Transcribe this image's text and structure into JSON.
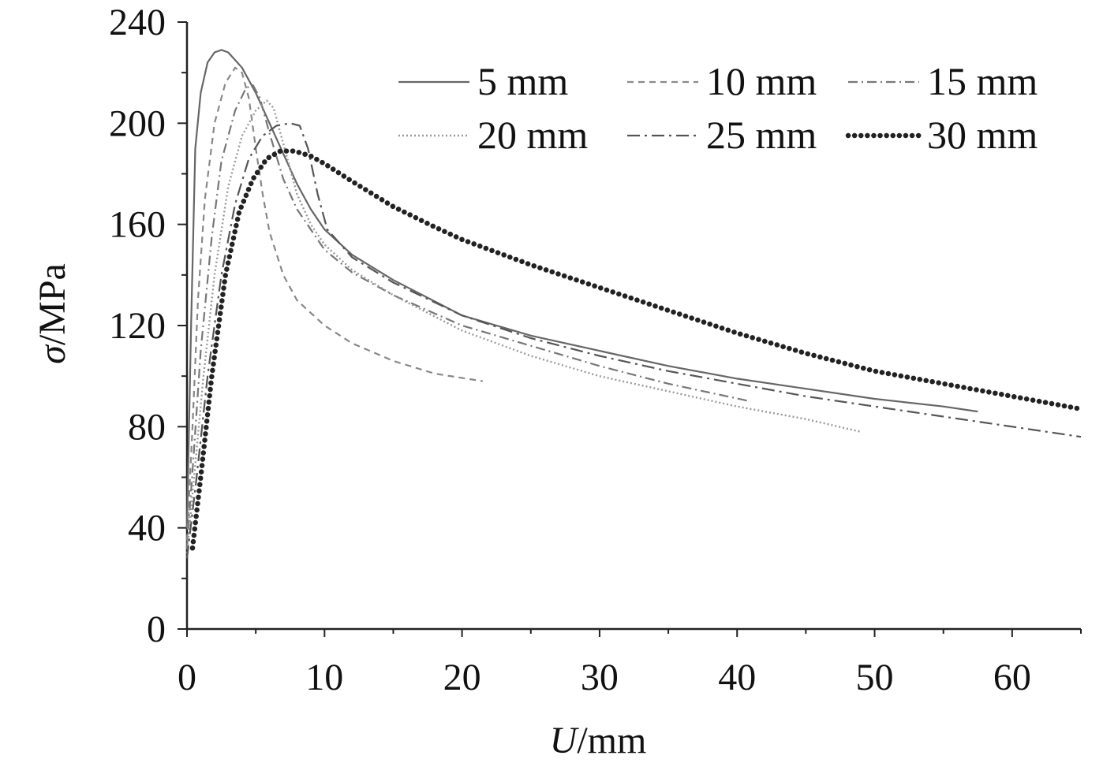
{
  "chart_data": {
    "type": "line",
    "xlabel_var": "U",
    "xlabel_unit": "/mm",
    "ylabel_var": "σ",
    "ylabel_unit": "/MPa",
    "xlim": [
      0,
      65
    ],
    "ylim": [
      0,
      240
    ],
    "xticks": [
      "0",
      "10",
      "20",
      "30",
      "40",
      "50",
      "60"
    ],
    "yticks": [
      "0",
      "40",
      "80",
      "120",
      "160",
      "200",
      "240"
    ],
    "grid": false,
    "legend_position": "top-right",
    "series": [
      {
        "name": "5 mm",
        "style": "solid",
        "color": "#666666",
        "points": [
          [
            0,
            40
          ],
          [
            0.3,
            120
          ],
          [
            0.6,
            190
          ],
          [
            1.0,
            212
          ],
          [
            1.5,
            224
          ],
          [
            2.0,
            228
          ],
          [
            2.5,
            229
          ],
          [
            3.0,
            228
          ],
          [
            4.0,
            222
          ],
          [
            5.0,
            212
          ],
          [
            6.0,
            200
          ],
          [
            7.0,
            188
          ],
          [
            8.0,
            176
          ],
          [
            9.0,
            166
          ],
          [
            10,
            158
          ],
          [
            12,
            148
          ],
          [
            15,
            138
          ],
          [
            20,
            124
          ],
          [
            25,
            116
          ],
          [
            30,
            110
          ],
          [
            35,
            104
          ],
          [
            40,
            99
          ],
          [
            45,
            95
          ],
          [
            50,
            91
          ],
          [
            55,
            88
          ],
          [
            57.5,
            86
          ]
        ]
      },
      {
        "name": "10 mm",
        "style": "dashed",
        "color": "#888888",
        "points": [
          [
            0,
            35
          ],
          [
            0.4,
            80
          ],
          [
            0.8,
            130
          ],
          [
            1.3,
            170
          ],
          [
            2.0,
            200
          ],
          [
            2.8,
            216
          ],
          [
            3.5,
            222
          ],
          [
            4.0,
            220
          ],
          [
            4.5,
            210
          ],
          [
            5.0,
            190
          ],
          [
            5.5,
            172
          ],
          [
            6.0,
            157
          ],
          [
            7.0,
            140
          ],
          [
            8.0,
            130
          ],
          [
            10,
            120
          ],
          [
            12,
            113
          ],
          [
            15,
            106
          ],
          [
            18,
            101
          ],
          [
            21.5,
            98
          ]
        ]
      },
      {
        "name": "15 mm",
        "style": "dashdot",
        "color": "#777777",
        "points": [
          [
            0,
            32
          ],
          [
            0.5,
            70
          ],
          [
            1.0,
            110
          ],
          [
            1.8,
            155
          ],
          [
            2.5,
            185
          ],
          [
            3.5,
            205
          ],
          [
            4.3,
            214
          ],
          [
            4.8,
            215
          ],
          [
            5.3,
            210
          ],
          [
            6.0,
            196
          ],
          [
            7.0,
            178
          ],
          [
            8.0,
            166
          ],
          [
            10,
            150
          ],
          [
            12,
            141
          ],
          [
            15,
            132
          ],
          [
            20,
            120
          ],
          [
            25,
            112
          ],
          [
            30,
            104
          ],
          [
            35,
            97
          ],
          [
            41,
            90
          ]
        ]
      },
      {
        "name": "20 mm",
        "style": "dotted",
        "color": "#999999",
        "points": [
          [
            0,
            30
          ],
          [
            0.6,
            65
          ],
          [
            1.2,
            100
          ],
          [
            2.0,
            140
          ],
          [
            3.0,
            175
          ],
          [
            4.0,
            195
          ],
          [
            5.0,
            205
          ],
          [
            5.8,
            209
          ],
          [
            6.3,
            206
          ],
          [
            7.0,
            192
          ],
          [
            8.0,
            172
          ],
          [
            9.0,
            160
          ],
          [
            10,
            152
          ],
          [
            12,
            142
          ],
          [
            15,
            132
          ],
          [
            20,
            118
          ],
          [
            25,
            108
          ],
          [
            30,
            100
          ],
          [
            35,
            94
          ],
          [
            40,
            88
          ],
          [
            45,
            83
          ],
          [
            49,
            78
          ]
        ]
      },
      {
        "name": "25 mm",
        "style": "longdash",
        "color": "#555555",
        "points": [
          [
            0,
            28
          ],
          [
            0.7,
            60
          ],
          [
            1.5,
            100
          ],
          [
            2.5,
            140
          ],
          [
            3.5,
            168
          ],
          [
            4.5,
            186
          ],
          [
            5.5,
            195
          ],
          [
            6.5,
            199
          ],
          [
            7.5,
            200
          ],
          [
            8.2,
            199
          ],
          [
            8.8,
            190
          ],
          [
            9.5,
            172
          ],
          [
            10.2,
            158
          ],
          [
            12,
            147
          ],
          [
            15,
            137
          ],
          [
            20,
            124
          ],
          [
            25,
            115
          ],
          [
            30,
            108
          ],
          [
            35,
            102
          ],
          [
            40,
            97
          ],
          [
            45,
            92
          ],
          [
            50,
            88
          ],
          [
            55,
            84
          ],
          [
            60,
            80
          ],
          [
            65,
            76
          ]
        ]
      },
      {
        "name": "30 mm",
        "style": "heavydot",
        "color": "#222222",
        "points": [
          [
            0.4,
            32
          ],
          [
            1.0,
            60
          ],
          [
            1.8,
            100
          ],
          [
            2.8,
            140
          ],
          [
            3.8,
            165
          ],
          [
            4.8,
            178
          ],
          [
            5.8,
            186
          ],
          [
            6.8,
            189
          ],
          [
            7.8,
            189
          ],
          [
            9.0,
            187
          ],
          [
            10,
            184
          ],
          [
            12,
            177
          ],
          [
            15,
            167
          ],
          [
            18,
            159
          ],
          [
            20,
            154
          ],
          [
            25,
            144
          ],
          [
            30,
            135
          ],
          [
            35,
            126
          ],
          [
            40,
            117
          ],
          [
            45,
            109
          ],
          [
            50,
            102
          ],
          [
            55,
            97
          ],
          [
            60,
            92
          ],
          [
            65,
            87
          ]
        ]
      }
    ]
  }
}
